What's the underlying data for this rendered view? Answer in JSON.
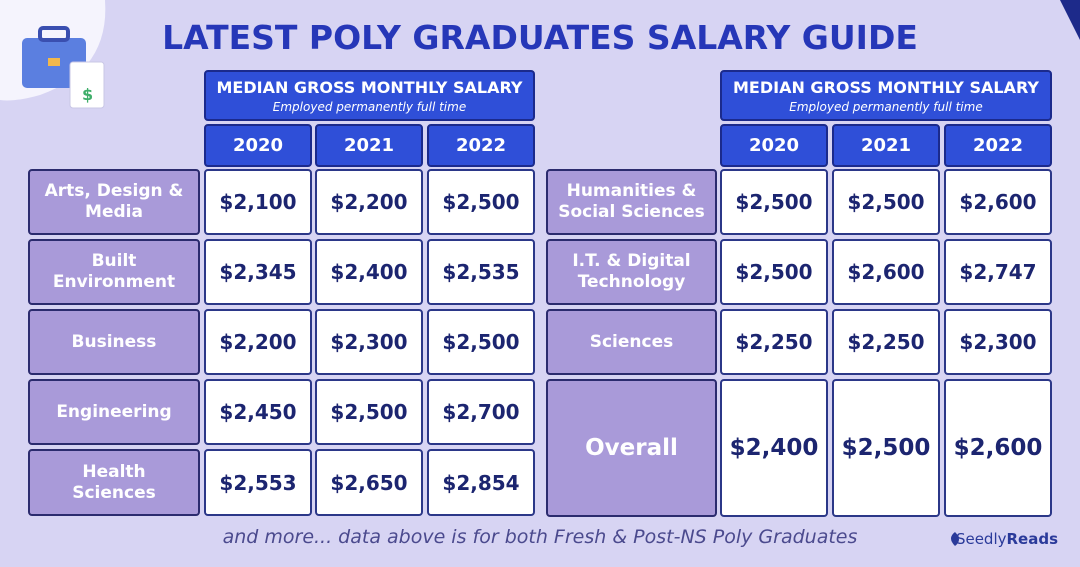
{
  "title": "LATEST POLY GRADUATES SALARY GUIDE",
  "tables": [
    {
      "header": "MEDIAN GROSS MONTHLY SALARY",
      "subheader": "Employed permanently full time",
      "years": [
        "2020",
        "2021",
        "2022"
      ],
      "rows": [
        {
          "label": "Arts, Design & Media",
          "values": [
            "$2,100",
            "$2,200",
            "$2,500"
          ]
        },
        {
          "label": "Built Environment",
          "values": [
            "$2,345",
            "$2,400",
            "$2,535"
          ]
        },
        {
          "label": "Business",
          "values": [
            "$2,200",
            "$2,300",
            "$2,500"
          ]
        },
        {
          "label": "Engineering",
          "values": [
            "$2,450",
            "$2,500",
            "$2,700"
          ]
        },
        {
          "label": "Health Sciences",
          "values": [
            "$2,553",
            "$2,650",
            "$2,854"
          ]
        }
      ]
    },
    {
      "header": "MEDIAN GROSS MONTHLY SALARY",
      "subheader": "Employed permanently full time",
      "years": [
        "2020",
        "2021",
        "2022"
      ],
      "rows": [
        {
          "label": "Humanities & Social Sciences",
          "values": [
            "$2,500",
            "$2,500",
            "$2,600"
          ]
        },
        {
          "label": "I.T. & Digital Technology",
          "values": [
            "$2,500",
            "$2,600",
            "$2,747"
          ]
        },
        {
          "label": "Sciences",
          "values": [
            "$2,250",
            "$2,250",
            "$2,300"
          ]
        },
        {
          "label": "Overall",
          "values": [
            "$2,400",
            "$2,500",
            "$2,600"
          ]
        }
      ]
    }
  ],
  "footer": "and more... data above is for both Fresh & Post-NS Poly Graduates",
  "brand": {
    "name": "Seedly",
    "suffix": "Reads"
  }
}
